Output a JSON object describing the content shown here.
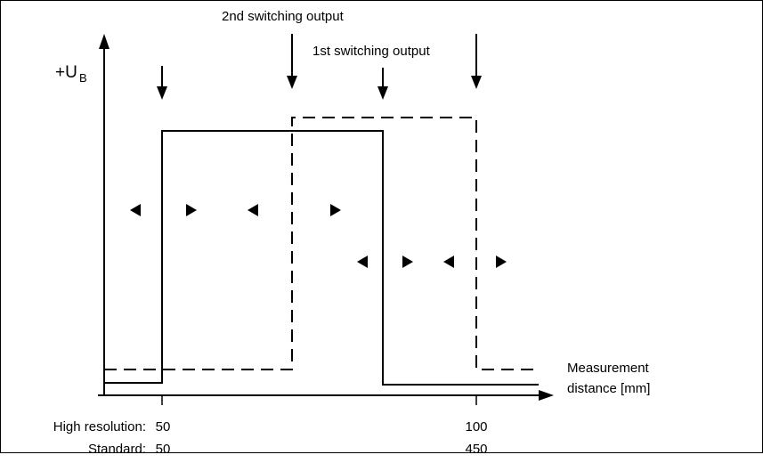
{
  "labels": {
    "y_axis": "+U",
    "y_axis_subscript": "B",
    "second_output": "2nd switching output",
    "first_output": "1st switching output",
    "x_axis_line1": "Measurement",
    "x_axis_line2": "distance [mm]",
    "row_high_resolution": "High resolution:",
    "row_standard": "Standard:"
  },
  "ticks": {
    "high_resolution": [
      "50",
      "100"
    ],
    "standard": [
      "50",
      "450"
    ]
  },
  "signals": [
    {
      "name": "1st switching output",
      "style": "solid"
    },
    {
      "name": "2nd switching output",
      "style": "dashed"
    }
  ],
  "colors": {
    "line": "#000000",
    "border": "#000000",
    "background": "#ffffff"
  },
  "icons": [
    "down-arrow-icon",
    "left-triangle-icon",
    "right-triangle-icon"
  ]
}
